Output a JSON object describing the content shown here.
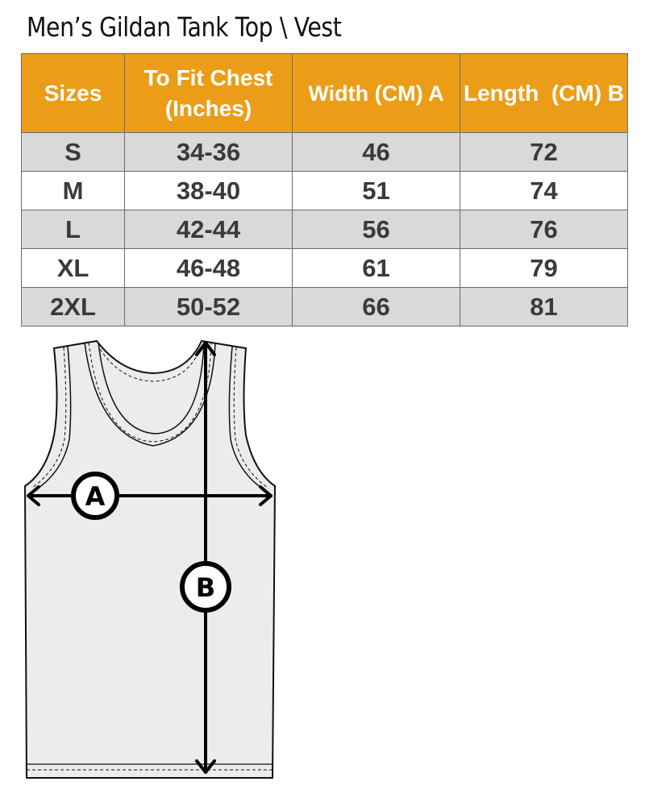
{
  "title": "Men’s Gildan Tank Top \\ Vest",
  "table": {
    "headers": [
      "Sizes",
      "To Fit Chest (Inches)",
      "Width (CM) A",
      "Length  (CM) B"
    ],
    "rows": [
      [
        "S",
        "34-36",
        "46",
        "72"
      ],
      [
        "M",
        "38-40",
        "51",
        "74"
      ],
      [
        "L",
        "42-44",
        "56",
        "76"
      ],
      [
        "XL",
        "46-48",
        "61",
        "79"
      ],
      [
        "2XL",
        "50-52",
        "66",
        "81"
      ]
    ]
  },
  "diagram": {
    "label_a": "A",
    "label_b": "B"
  },
  "colors": {
    "header": "#ec9d17",
    "row_alt": "#d9d9d9",
    "garment": "#ececec"
  }
}
